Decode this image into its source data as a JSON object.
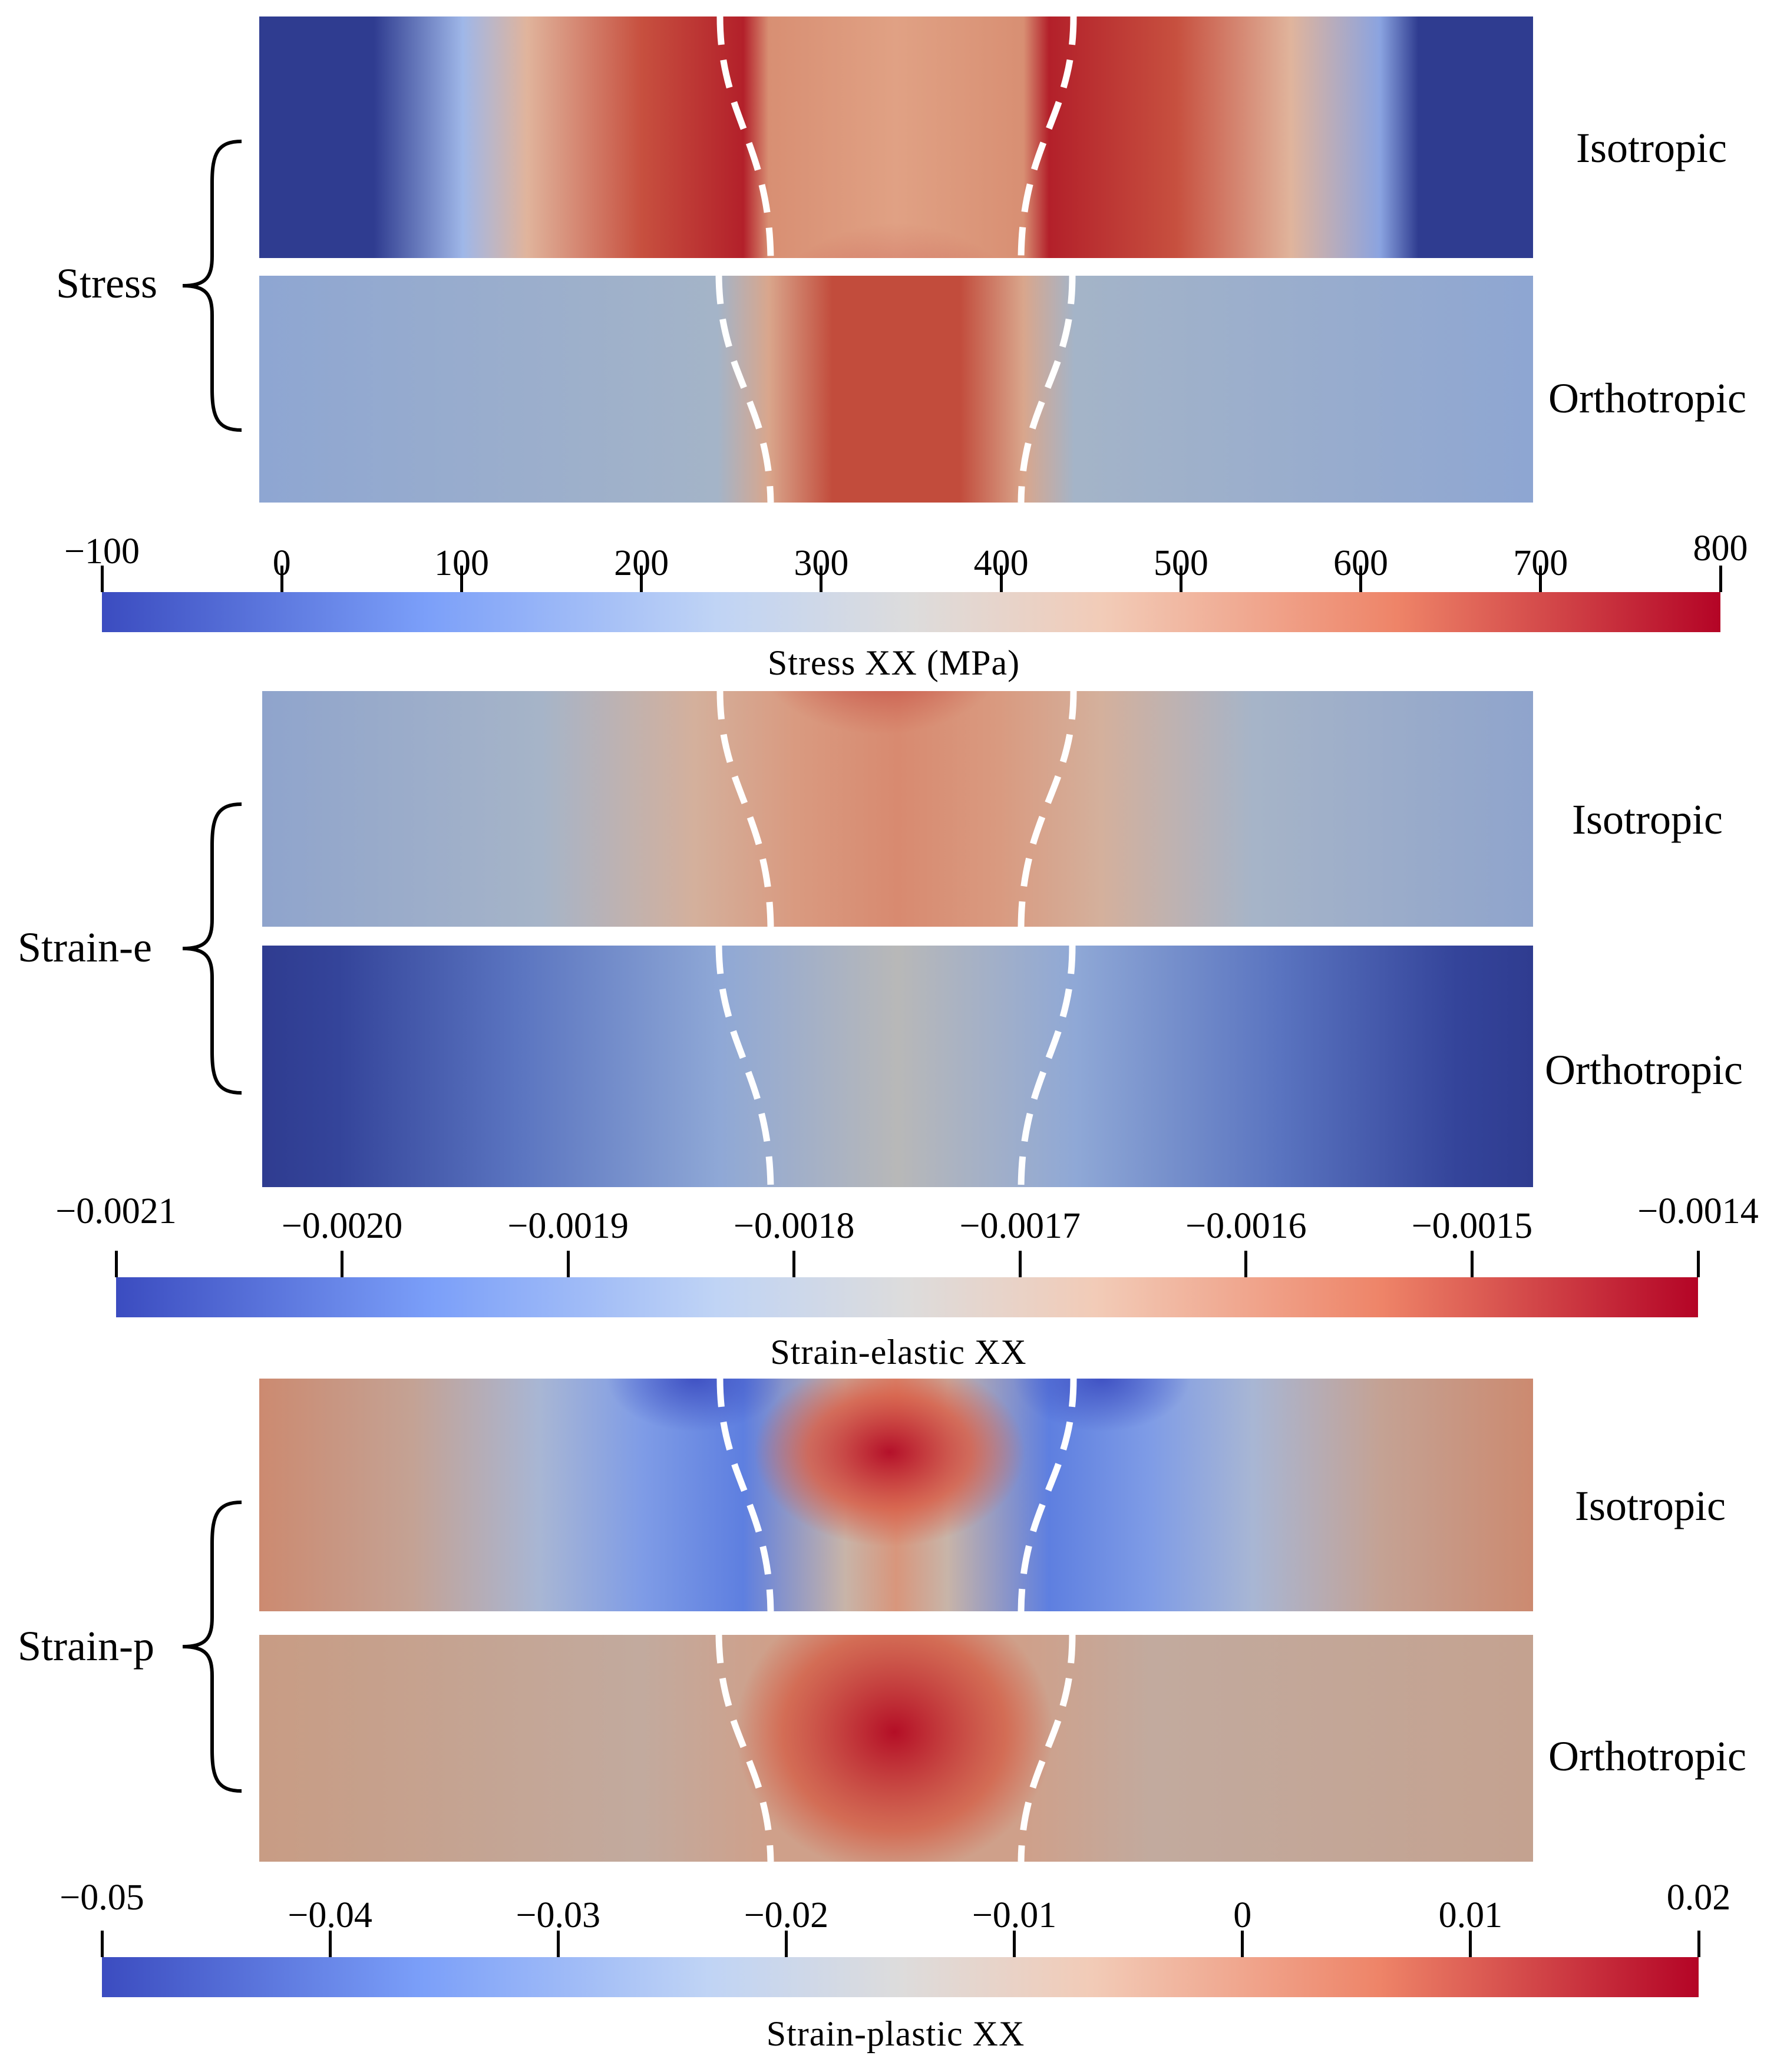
{
  "colormap": {
    "low": "#3b4cc0",
    "mid": "#dddcdc",
    "high": "#b40426"
  },
  "sections": [
    {
      "group_label": "Stress",
      "rows": [
        {
          "label": "Isotropic",
          "field": "stress-isotropic"
        },
        {
          "label": "Orthotropic",
          "field": "stress-orthotropic"
        }
      ],
      "colorbar": {
        "title": "Stress XX (MPa)",
        "min": -100,
        "max": 800,
        "ticks": [
          "-100",
          "0",
          "100",
          "200",
          "300",
          "400",
          "500",
          "600",
          "700",
          "800"
        ],
        "tick_values": [
          -100,
          0,
          100,
          200,
          300,
          400,
          500,
          600,
          700,
          800
        ]
      }
    },
    {
      "group_label": "Strain-e",
      "rows": [
        {
          "label": "Isotropic",
          "field": "strain-e-isotropic"
        },
        {
          "label": "Orthotropic",
          "field": "strain-e-orthotropic"
        }
      ],
      "colorbar": {
        "title": "Strain-elastic XX",
        "min": -0.0021,
        "max": -0.0014,
        "ticks": [
          "-0.0021",
          "-0.0020",
          "-0.0019",
          "-0.0018",
          "-0.0017",
          "-0.0016",
          "-0.0015",
          "-0.0014"
        ],
        "tick_values": [
          -0.0021,
          -0.002,
          -0.0019,
          -0.0018,
          -0.0017,
          -0.0016,
          -0.0015,
          -0.0014
        ]
      }
    },
    {
      "group_label": "Strain-p",
      "rows": [
        {
          "label": "Isotropic",
          "field": "strain-p-isotropic"
        },
        {
          "label": "Orthotropic",
          "field": "strain-p-orthotropic"
        }
      ],
      "colorbar": {
        "title": "Strain-plastic XX",
        "min": -0.05,
        "max": 0.02,
        "ticks": [
          "-0.05",
          "-0.04",
          "-0.03",
          "-0.02",
          "-0.01",
          "0",
          "0.01",
          "0.02"
        ],
        "tick_values": [
          -0.05,
          -0.04,
          -0.03,
          -0.02,
          -0.01,
          0,
          0.01,
          0.02
        ]
      }
    }
  ]
}
